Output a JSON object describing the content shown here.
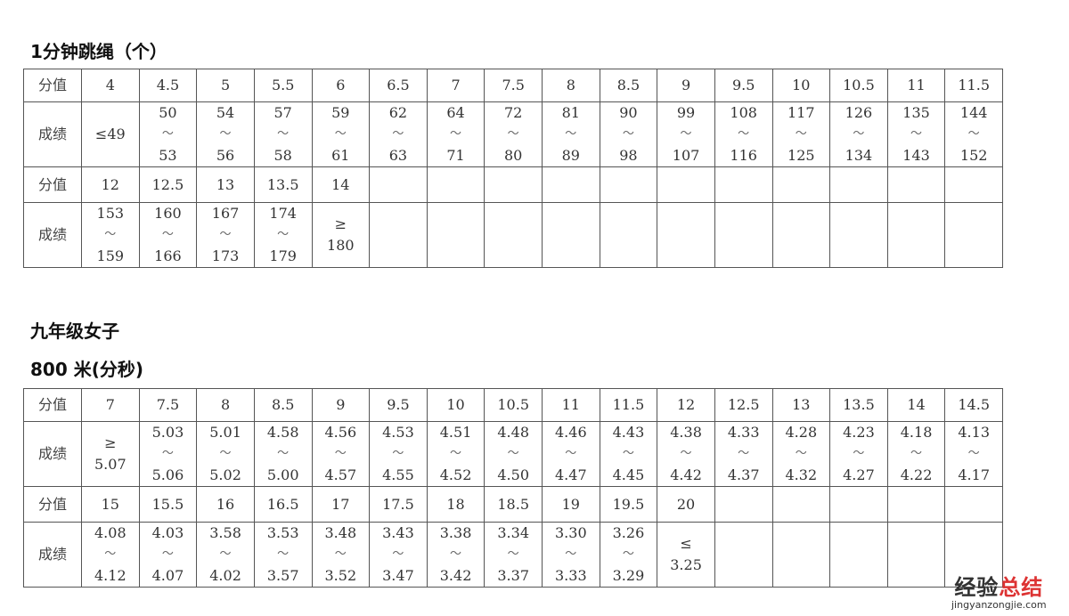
{
  "section1": {
    "title": "1分钟跳绳（个）",
    "row_label_score": "分值",
    "row_label_result": "成绩",
    "blocks": [
      {
        "scores": [
          "4",
          "4.5",
          "5",
          "5.5",
          "6",
          "6.5",
          "7",
          "7.5",
          "8",
          "8.5",
          "9",
          "9.5",
          "10",
          "10.5",
          "11",
          "11.5"
        ],
        "results": [
          [
            "≤49"
          ],
          [
            "50",
            "～",
            "53"
          ],
          [
            "54",
            "～",
            "56"
          ],
          [
            "57",
            "～",
            "58"
          ],
          [
            "59",
            "～",
            "61"
          ],
          [
            "62",
            "～",
            "63"
          ],
          [
            "64",
            "～",
            "71"
          ],
          [
            "72",
            "～",
            "80"
          ],
          [
            "81",
            "～",
            "89"
          ],
          [
            "90",
            "～",
            "98"
          ],
          [
            "99",
            "～",
            "107"
          ],
          [
            "108",
            "～",
            "116"
          ],
          [
            "117",
            "～",
            "125"
          ],
          [
            "126",
            "～",
            "134"
          ],
          [
            "135",
            "～",
            "143"
          ],
          [
            "144",
            "～",
            "152"
          ]
        ]
      },
      {
        "scores": [
          "12",
          "12.5",
          "13",
          "13.5",
          "14",
          "",
          "",
          "",
          "",
          "",
          "",
          "",
          "",
          "",
          "",
          ""
        ],
        "results": [
          [
            "153",
            "～",
            "159"
          ],
          [
            "160",
            "～",
            "166"
          ],
          [
            "167",
            "～",
            "173"
          ],
          [
            "174",
            "～",
            "179"
          ],
          [
            "≥",
            "180"
          ],
          [],
          [],
          [],
          [],
          [],
          [],
          [],
          [],
          [],
          [],
          []
        ]
      }
    ]
  },
  "heading": "九年级女子",
  "section2": {
    "title": "800 米(分秒)",
    "row_label_score": "分值",
    "row_label_result": "成绩",
    "blocks": [
      {
        "scores": [
          "7",
          "7.5",
          "8",
          "8.5",
          "9",
          "9.5",
          "10",
          "10.5",
          "11",
          "11.5",
          "12",
          "12.5",
          "13",
          "13.5",
          "14",
          "14.5"
        ],
        "results": [
          [
            "≥",
            "5.07"
          ],
          [
            "5.03",
            "～",
            "5.06"
          ],
          [
            "5.01",
            "～",
            "5.02"
          ],
          [
            "4.58",
            "～",
            "5.00"
          ],
          [
            "4.56",
            "～",
            "4.57"
          ],
          [
            "4.53",
            "～",
            "4.55"
          ],
          [
            "4.51",
            "～",
            "4.52"
          ],
          [
            "4.48",
            "～",
            "4.50"
          ],
          [
            "4.46",
            "～",
            "4.47"
          ],
          [
            "4.43",
            "～",
            "4.45"
          ],
          [
            "4.38",
            "～",
            "4.42"
          ],
          [
            "4.33",
            "～",
            "4.37"
          ],
          [
            "4.28",
            "～",
            "4.32"
          ],
          [
            "4.23",
            "～",
            "4.27"
          ],
          [
            "4.18",
            "～",
            "4.22"
          ],
          [
            "4.13",
            "～",
            "4.17"
          ]
        ]
      },
      {
        "scores": [
          "15",
          "15.5",
          "16",
          "16.5",
          "17",
          "17.5",
          "18",
          "18.5",
          "19",
          "19.5",
          "20",
          "",
          "",
          "",
          "",
          ""
        ],
        "results": [
          [
            "4.08",
            "～",
            "4.12"
          ],
          [
            "4.03",
            "～",
            "4.07"
          ],
          [
            "3.58",
            "～",
            "4.02"
          ],
          [
            "3.53",
            "～",
            "3.57"
          ],
          [
            "3.48",
            "～",
            "3.52"
          ],
          [
            "3.43",
            "～",
            "3.47"
          ],
          [
            "3.38",
            "～",
            "3.42"
          ],
          [
            "3.34",
            "～",
            "3.37"
          ],
          [
            "3.30",
            "～",
            "3.33"
          ],
          [
            "3.26",
            "～",
            "3.29"
          ],
          [
            "≤",
            "3.25"
          ],
          [],
          [],
          [],
          [],
          []
        ]
      }
    ]
  },
  "watermark": {
    "logo_left": "经验",
    "logo_right": "总结",
    "url": "jingyanzongjie.com"
  }
}
